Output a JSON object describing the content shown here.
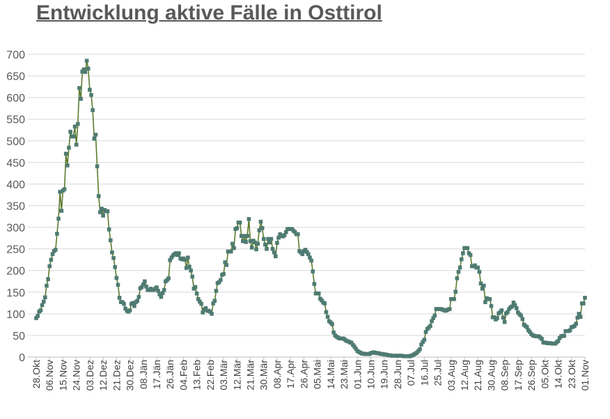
{
  "title": "Entwicklung aktive Fälle in Osttirol",
  "chart_data": {
    "type": "line",
    "title": "Entwicklung aktive Fälle in Osttirol",
    "xlabel": "",
    "ylabel": "",
    "ylim": [
      0,
      700
    ],
    "y_ticks": [
      0,
      50,
      100,
      150,
      200,
      250,
      300,
      350,
      400,
      450,
      500,
      550,
      600,
      650,
      700
    ],
    "x_tick_labels": [
      "28.Okt",
      "06.Nov",
      "15.Nov",
      "24.Nov",
      "03.Dez",
      "12.Dez",
      "21.Dez",
      "30.Dez",
      "08.Jän",
      "17.Jän",
      "26.Jän",
      "04.Feb",
      "13.Feb",
      "22.Feb",
      "03.Mär",
      "12.Mär",
      "21.Mär",
      "30.Mär",
      "08.Apr",
      "17.Apr",
      "26.Apr",
      "05.Mai",
      "14.Mai",
      "23.Mai",
      "01.Jun",
      "10.Jun",
      "19.Jun",
      "28.Jun",
      "07.Jul",
      "16.Jul",
      "25.Jul",
      "03.Aug",
      "12.Aug",
      "21.Aug",
      "30.Aug",
      "08.Sep",
      "17.Sep",
      "26.Sep",
      "05.Okt",
      "14.Okt",
      "23.Okt",
      "01.Nov"
    ],
    "grid": true,
    "legend": "none",
    "colors": {
      "line": "#5b7a2c",
      "marker": "#4e7b72",
      "grid": "#d9d9d9",
      "text": "#595959"
    },
    "series": [
      {
        "values": [
          90,
          95,
          105,
          108,
          120,
          128,
          138,
          165,
          180,
          210,
          225,
          238,
          245,
          248,
          285,
          320,
          382,
          338,
          385,
          388,
          470,
          443,
          484,
          521,
          510,
          510,
          533,
          491,
          539,
          622,
          597,
          660,
          665,
          659,
          685,
          667,
          618,
          606,
          571,
          505,
          514,
          441,
          372,
          335,
          343,
          327,
          340,
          337,
          337,
          295,
          270,
          242,
          229,
          208,
          183,
          167,
          137,
          127,
          127,
          123,
          112,
          107,
          105,
          108,
          123,
          125,
          118,
          127,
          130,
          139,
          159,
          162,
          168,
          175,
          163,
          155,
          155,
          158,
          155,
          155,
          158,
          161,
          153,
          145,
          139,
          148,
          155,
          175,
          178,
          182,
          224,
          230,
          235,
          238,
          240,
          236,
          240,
          228,
          226,
          228,
          225,
          206,
          230,
          209,
          200,
          186,
          158,
          162,
          147,
          134,
          128,
          123,
          103,
          110,
          113,
          107,
          107,
          105,
          100,
          124,
          130,
          153,
          171,
          173,
          178,
          190,
          192,
          219,
          213,
          244,
          244,
          244,
          262,
          252,
          296,
          298,
          311,
          311,
          280,
          268,
          280,
          266,
          280,
          319,
          268,
          253,
          269,
          265,
          249,
          262,
          293,
          313,
          298,
          273,
          260,
          250,
          273,
          265,
          273,
          250,
          242,
          233,
          264,
          276,
          284,
          280,
          279,
          282,
          289,
          296,
          296,
          296,
          296,
          292,
          289,
          284,
          284,
          245,
          242,
          238,
          245,
          248,
          243,
          238,
          230,
          223,
          198,
          169,
          147,
          147,
          147,
          135,
          131,
          126,
          124,
          104,
          93,
          83,
          80,
          76,
          57,
          50,
          47,
          45,
          43,
          43,
          43,
          42,
          39,
          37,
          36,
          34,
          33,
          28,
          24,
          19,
          14,
          12,
          10,
          8,
          8,
          7,
          7,
          7,
          7,
          9,
          10,
          11,
          10,
          9,
          9,
          8,
          7,
          7,
          6,
          6,
          5,
          4,
          4,
          3,
          3,
          3,
          3,
          3,
          3,
          3,
          3,
          2,
          2,
          2,
          2,
          2,
          3,
          4,
          6,
          8,
          10,
          14,
          18,
          29,
          35,
          40,
          58,
          65,
          68,
          72,
          83,
          90,
          96,
          111,
          111,
          111,
          111,
          110,
          109,
          107,
          108,
          110,
          111,
          134,
          134,
          134,
          151,
          182,
          197,
          207,
          226,
          240,
          252,
          252,
          252,
          240,
          236,
          210,
          210,
          212,
          207,
          207,
          197,
          170,
          158,
          165,
          127,
          136,
          134,
          134,
          118,
          92,
          92,
          87,
          90,
          101,
          104,
          108,
          91,
          81,
          101,
          104,
          111,
          115,
          117,
          126,
          120,
          113,
          103,
          99,
          96,
          88,
          75,
          72,
          69,
          62,
          58,
          53,
          50,
          49,
          48,
          48,
          48,
          45,
          42,
          34,
          33,
          33,
          32,
          32,
          32,
          31,
          31,
          31,
          34,
          37,
          44,
          48,
          49,
          49,
          60,
          60,
          60,
          62,
          69,
          70,
          72,
          77,
          91,
          100,
          93,
          124,
          124,
          137
        ]
      }
    ]
  }
}
